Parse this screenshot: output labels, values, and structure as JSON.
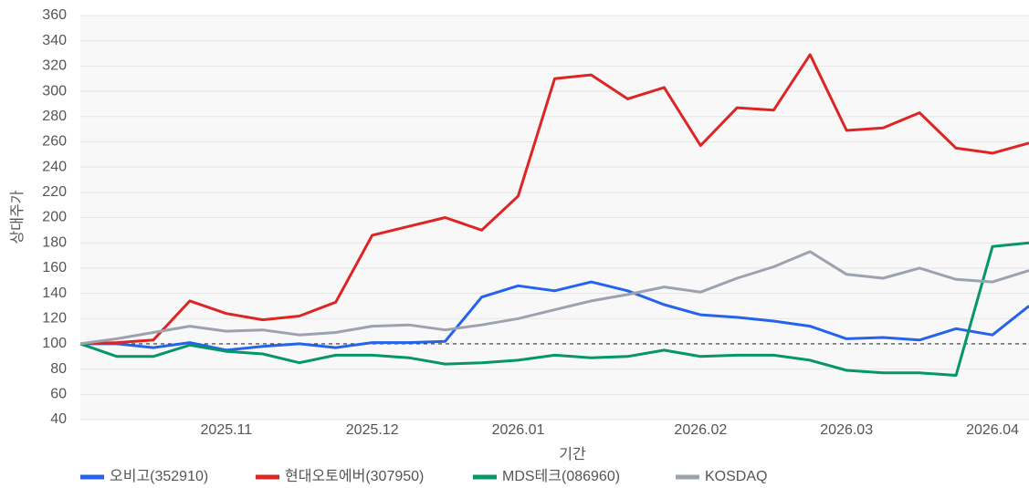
{
  "chart_data": {
    "type": "line",
    "x_label": "기간",
    "y_label": "상대주가",
    "categories": [
      null,
      null,
      null,
      null,
      "2025.11",
      null,
      null,
      null,
      "2025.12",
      null,
      null,
      null,
      "2026.01",
      null,
      null,
      null,
      null,
      "2026.02",
      null,
      null,
      null,
      "2026.03",
      null,
      null,
      null,
      "2026.04",
      null
    ],
    "series": [
      {
        "name": "오비고(352910)",
        "color": "#2563eb",
        "values": [
          100,
          100,
          97,
          101,
          95,
          98,
          100,
          97,
          101,
          101,
          102,
          137,
          146,
          142,
          149,
          142,
          131,
          123,
          121,
          118,
          114,
          104,
          105,
          103,
          112,
          107,
          130
        ]
      },
      {
        "name": "현대오토에버(307950)",
        "color": "#dc2626",
        "values": [
          100,
          101,
          103,
          134,
          124,
          119,
          122,
          133,
          186,
          193,
          200,
          190,
          217,
          310,
          313,
          294,
          303,
          257,
          287,
          285,
          329,
          269,
          271,
          283,
          255,
          251,
          259
        ]
      },
      {
        "name": "MDS테크(086960)",
        "color": "#059669",
        "values": [
          100,
          90,
          90,
          99,
          94,
          92,
          85,
          91,
          91,
          89,
          84,
          85,
          87,
          91,
          89,
          90,
          95,
          90,
          91,
          91,
          87,
          79,
          77,
          77,
          75,
          177,
          180
        ]
      },
      {
        "name": "KOSDAQ",
        "color": "#9ca3af",
        "values": [
          100,
          104,
          109,
          114,
          110,
          111,
          107,
          109,
          114,
          115,
          111,
          115,
          120,
          127,
          134,
          139,
          145,
          141,
          152,
          161,
          173,
          155,
          152,
          160,
          151,
          149,
          158
        ]
      }
    ],
    "baseline": 100,
    "ylim": [
      40,
      360
    ],
    "yticks": [
      40,
      60,
      80,
      100,
      120,
      140,
      160,
      180,
      200,
      220,
      240,
      260,
      280,
      300,
      320,
      340,
      360
    ],
    "grid": true,
    "legend": "bottom"
  }
}
